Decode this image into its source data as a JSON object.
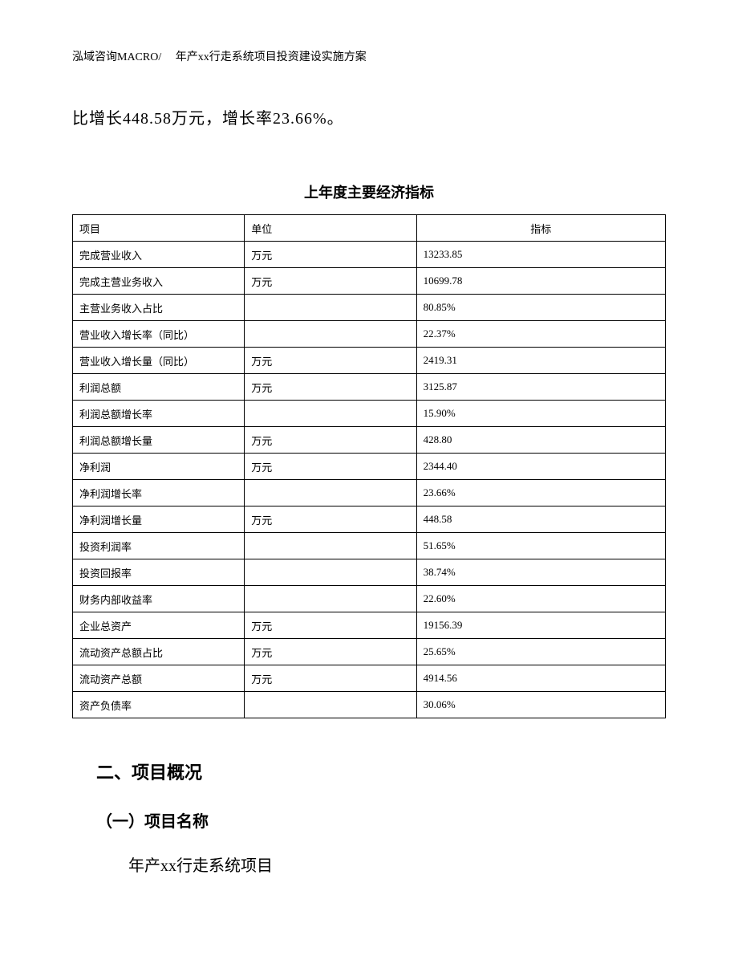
{
  "header": "泓域咨询MACRO/　 年产xx行走系统项目投资建设实施方案",
  "intro_text": "比增长448.58万元，增长率23.66%。",
  "table": {
    "title": "上年度主要经济指标",
    "columns": [
      "项目",
      "单位",
      "指标"
    ],
    "rows": [
      [
        "完成营业收入",
        "万元",
        "13233.85"
      ],
      [
        "完成主营业务收入",
        "万元",
        "10699.78"
      ],
      [
        "主营业务收入占比",
        "",
        "80.85%"
      ],
      [
        "营业收入增长率（同比）",
        "",
        "22.37%"
      ],
      [
        "营业收入增长量（同比）",
        "万元",
        "2419.31"
      ],
      [
        "利润总额",
        "万元",
        "3125.87"
      ],
      [
        "利润总额增长率",
        "",
        "15.90%"
      ],
      [
        "利润总额增长量",
        "万元",
        "428.80"
      ],
      [
        "净利润",
        "万元",
        "2344.40"
      ],
      [
        "净利润增长率",
        "",
        "23.66%"
      ],
      [
        "净利润增长量",
        "万元",
        "448.58"
      ],
      [
        "投资利润率",
        "",
        "51.65%"
      ],
      [
        "投资回报率",
        "",
        "38.74%"
      ],
      [
        "财务内部收益率",
        "",
        "22.60%"
      ],
      [
        "企业总资产",
        "万元",
        "19156.39"
      ],
      [
        "流动资产总额占比",
        "万元",
        "25.65%"
      ],
      [
        "流动资产总额",
        "万元",
        "4914.56"
      ],
      [
        "资产负债率",
        "",
        "30.06%"
      ]
    ]
  },
  "section_heading": "二、项目概况",
  "subsection_heading": "（一）项目名称",
  "body_text": "年产xx行走系统项目"
}
